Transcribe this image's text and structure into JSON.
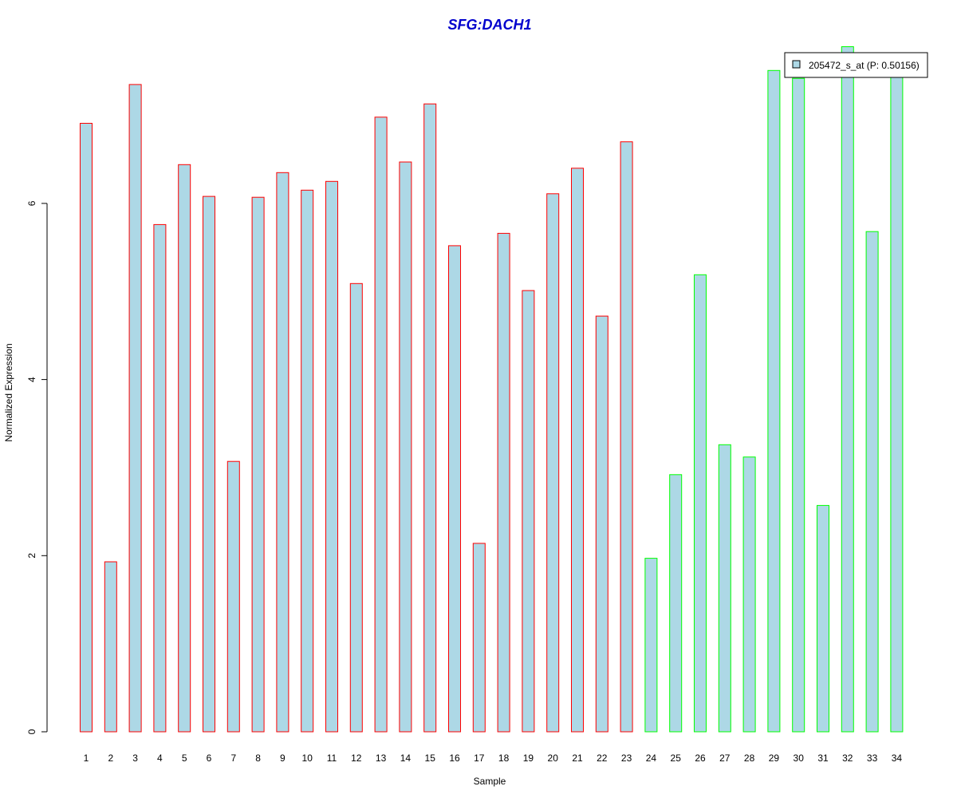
{
  "chart_data": {
    "type": "bar",
    "title": "SFG:DACH1",
    "xlabel": "Sample",
    "ylabel": "Normalized Expression",
    "ylim": [
      0,
      7.9
    ],
    "yticks": [
      0,
      2,
      4,
      6
    ],
    "categories": [
      "1",
      "2",
      "3",
      "4",
      "5",
      "6",
      "7",
      "8",
      "9",
      "10",
      "11",
      "12",
      "13",
      "14",
      "15",
      "16",
      "17",
      "18",
      "19",
      "20",
      "21",
      "22",
      "23",
      "24",
      "25",
      "26",
      "27",
      "28",
      "29",
      "30",
      "31",
      "32",
      "33",
      "34"
    ],
    "values": [
      6.91,
      1.93,
      7.35,
      5.76,
      6.44,
      6.08,
      3.07,
      6.07,
      6.35,
      6.15,
      6.25,
      5.09,
      6.98,
      6.47,
      7.13,
      5.52,
      2.14,
      5.66,
      5.01,
      6.11,
      6.4,
      4.72,
      6.7,
      1.97,
      2.92,
      5.19,
      3.26,
      3.12,
      7.51,
      7.42,
      2.57,
      7.78,
      5.68,
      7.57
    ],
    "groups": [
      "red",
      "red",
      "red",
      "red",
      "red",
      "red",
      "red",
      "red",
      "red",
      "red",
      "red",
      "red",
      "red",
      "red",
      "red",
      "red",
      "red",
      "red",
      "red",
      "red",
      "red",
      "red",
      "red",
      "green",
      "green",
      "green",
      "green",
      "green",
      "green",
      "green",
      "green",
      "green",
      "green",
      "green"
    ],
    "legend": {
      "position": "top-right",
      "entries": [
        "205472_s_at (P: 0.50156)"
      ]
    },
    "colors": {
      "bar_fill": "#add8e6",
      "red_border": "#ff0000",
      "green_border": "#00ff00",
      "title": "#0000cd"
    },
    "grid": false
  }
}
